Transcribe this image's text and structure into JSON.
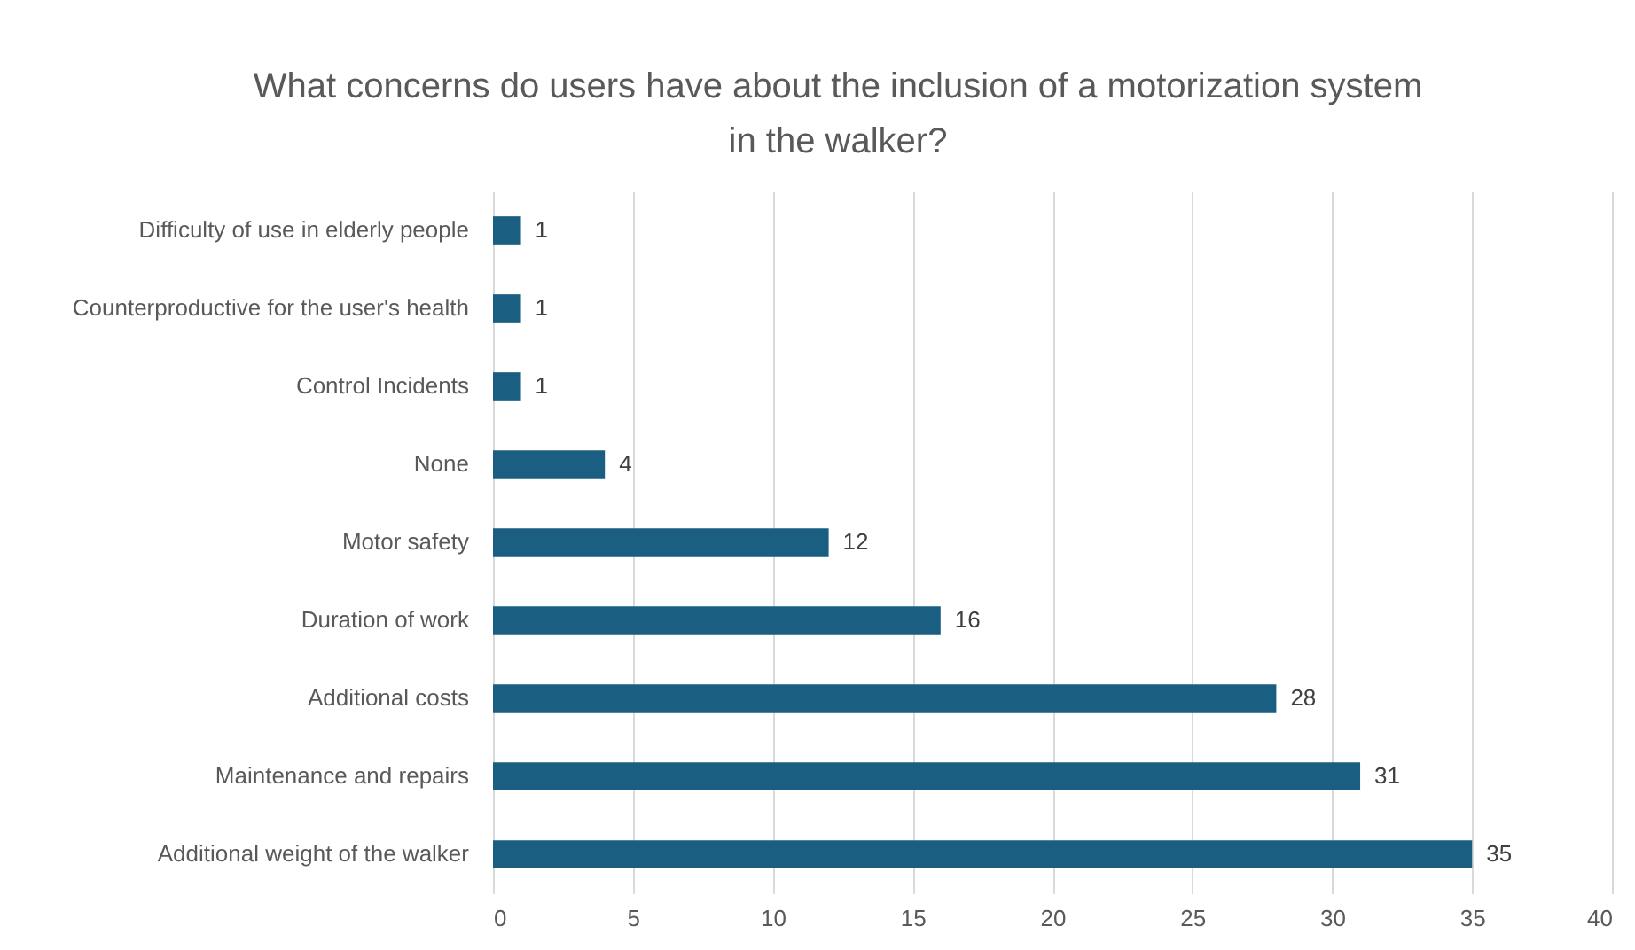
{
  "chart_data": {
    "type": "bar",
    "orientation": "horizontal",
    "title": "What concerns do users have about the inclusion of a motorization system in the walker?",
    "categories": [
      "Difficulty of use in elderly people",
      "Counterproductive for the user's health",
      "Control Incidents",
      "None",
      "Motor safety",
      "Duration of work",
      "Additional costs",
      "Maintenance and repairs",
      "Additional weight of the walker"
    ],
    "values": [
      1,
      1,
      1,
      4,
      12,
      16,
      28,
      31,
      35
    ],
    "color": "#1a5f82",
    "xlim": [
      0,
      40
    ],
    "xticks": [
      0,
      5,
      10,
      15,
      20,
      25,
      30,
      35,
      40
    ],
    "grid": "x",
    "data_labels": true
  }
}
